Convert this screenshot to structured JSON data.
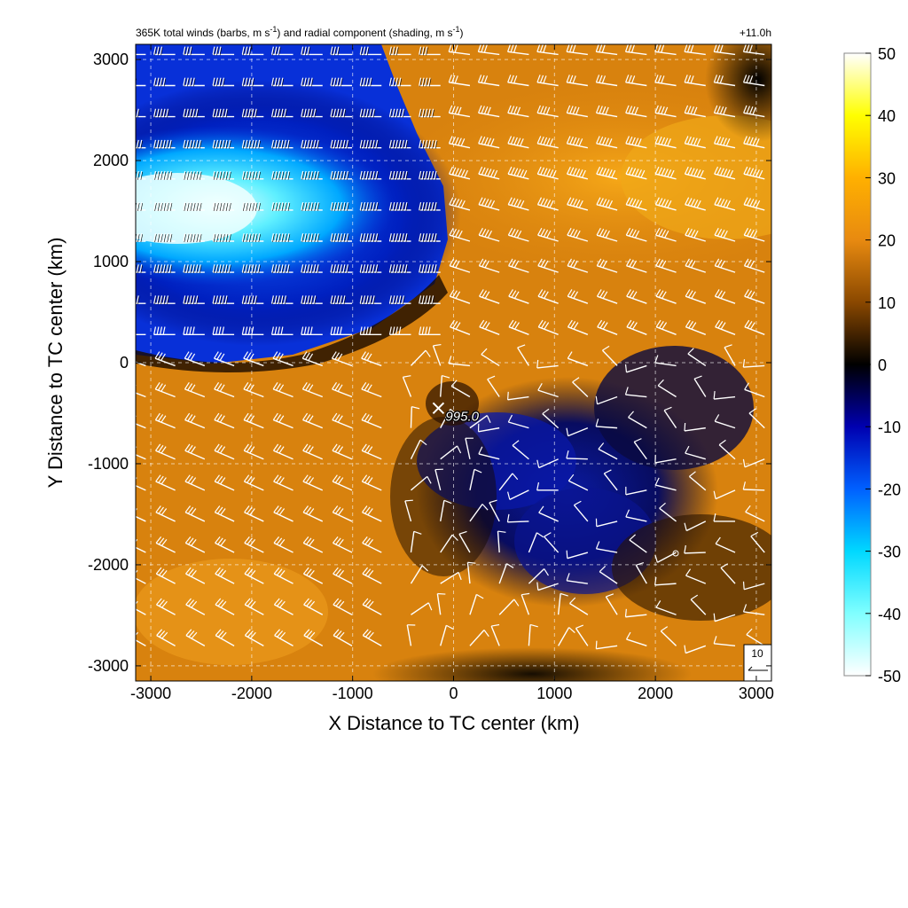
{
  "header": {
    "title_main": "365K total winds (barbs, m s",
    "title_unit_sup": "-1",
    "title_mid": ") and radial component (shading, m s",
    "title_end": ")",
    "time_label": "+11.0h"
  },
  "chart_data": {
    "type": "heatmap",
    "xlabel": "X Distance to TC center (km)",
    "ylabel": "Y Distance to TC center (km)",
    "xlim": [
      -3150,
      3150
    ],
    "ylim": [
      -3150,
      3150
    ],
    "x_ticks": [
      -3000,
      -2000,
      -1000,
      0,
      1000,
      2000,
      3000
    ],
    "x_tick_labels": [
      "-3000",
      "-2000",
      "-1000",
      "0",
      "1000",
      "2000",
      "3000"
    ],
    "y_ticks": [
      -3000,
      -2000,
      -1000,
      0,
      1000,
      2000,
      3000
    ],
    "y_tick_labels": [
      "-3000",
      "-2000",
      "-1000",
      "0",
      "1000",
      "2000",
      "3000"
    ],
    "grid": true,
    "colorbar": {
      "range": [
        -50,
        50
      ],
      "ticks": [
        50,
        40,
        30,
        20,
        10,
        0,
        -10,
        -20,
        -30,
        -40,
        -50
      ],
      "tick_labels": [
        "50",
        "40",
        "30",
        "20",
        "10",
        "0",
        "-10",
        "-20",
        "-30",
        "-40",
        "-50"
      ],
      "colors": {
        "-50": "#ffffff",
        "-40": "#80ffff",
        "-30": "#00d8ff",
        "-20": "#0060ff",
        "-10": "#0000b0",
        "0": "#000000",
        "10": "#8a4800",
        "20": "#e88a10",
        "30": "#ffb000",
        "40": "#ffff00",
        "50": "#ffffff"
      }
    },
    "center_marker": {
      "x": -150,
      "y": -450,
      "label": "995.0"
    },
    "reference_barb": {
      "label": "10"
    }
  }
}
